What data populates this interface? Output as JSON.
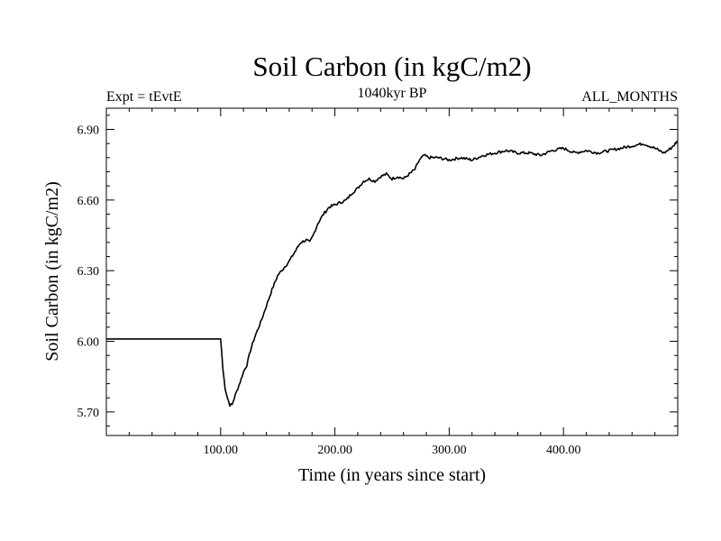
{
  "chart_data": {
    "type": "line",
    "title": "Soil Carbon (in kgC/m2)",
    "subtitle": "1040kyr BP",
    "left_label": "Expt = tEvtE",
    "right_label": "ALL_MONTHS",
    "xlabel": "Time (in years since start)",
    "ylabel": "Soil Carbon (in kgC/m2)",
    "xlim": [
      0,
      500
    ],
    "ylim": [
      5.6,
      6.99
    ],
    "x_ticks": [
      100,
      200,
      300,
      400
    ],
    "x_tick_labels": [
      "100.00",
      "200.00",
      "300.00",
      "400.00"
    ],
    "y_ticks": [
      5.7,
      6.0,
      6.3,
      6.6,
      6.9
    ],
    "y_tick_labels": [
      "5.70",
      "6.00",
      "6.30",
      "6.60",
      "6.90"
    ],
    "grid": false,
    "series": [
      {
        "color": "#000000",
        "points": [
          [
            0,
            6.01
          ],
          [
            100,
            6.01
          ],
          [
            101,
            5.95
          ],
          [
            102,
            5.88
          ],
          [
            104,
            5.8
          ],
          [
            106,
            5.76
          ],
          [
            108,
            5.73
          ],
          [
            110,
            5.73
          ],
          [
            112,
            5.76
          ],
          [
            115,
            5.8
          ],
          [
            118,
            5.84
          ],
          [
            120,
            5.87
          ],
          [
            123,
            5.9
          ],
          [
            126,
            5.96
          ],
          [
            130,
            6.02
          ],
          [
            135,
            6.08
          ],
          [
            140,
            6.15
          ],
          [
            145,
            6.22
          ],
          [
            150,
            6.28
          ],
          [
            155,
            6.31
          ],
          [
            160,
            6.34
          ],
          [
            165,
            6.38
          ],
          [
            170,
            6.42
          ],
          [
            175,
            6.43
          ],
          [
            178,
            6.42
          ],
          [
            181,
            6.45
          ],
          [
            185,
            6.5
          ],
          [
            190,
            6.54
          ],
          [
            195,
            6.57
          ],
          [
            200,
            6.58
          ],
          [
            205,
            6.59
          ],
          [
            210,
            6.6
          ],
          [
            215,
            6.63
          ],
          [
            220,
            6.65
          ],
          [
            225,
            6.68
          ],
          [
            230,
            6.69
          ],
          [
            235,
            6.68
          ],
          [
            240,
            6.7
          ],
          [
            245,
            6.71
          ],
          [
            250,
            6.69
          ],
          [
            255,
            6.7
          ],
          [
            260,
            6.69
          ],
          [
            265,
            6.71
          ],
          [
            270,
            6.73
          ],
          [
            274,
            6.77
          ],
          [
            278,
            6.79
          ],
          [
            282,
            6.78
          ],
          [
            290,
            6.78
          ],
          [
            300,
            6.77
          ],
          [
            310,
            6.78
          ],
          [
            320,
            6.77
          ],
          [
            330,
            6.79
          ],
          [
            340,
            6.8
          ],
          [
            350,
            6.81
          ],
          [
            360,
            6.8
          ],
          [
            370,
            6.8
          ],
          [
            380,
            6.79
          ],
          [
            390,
            6.81
          ],
          [
            400,
            6.82
          ],
          [
            410,
            6.8
          ],
          [
            420,
            6.81
          ],
          [
            430,
            6.8
          ],
          [
            440,
            6.81
          ],
          [
            450,
            6.82
          ],
          [
            460,
            6.83
          ],
          [
            470,
            6.84
          ],
          [
            480,
            6.82
          ],
          [
            488,
            6.8
          ],
          [
            494,
            6.82
          ],
          [
            500,
            6.85
          ]
        ]
      }
    ]
  }
}
